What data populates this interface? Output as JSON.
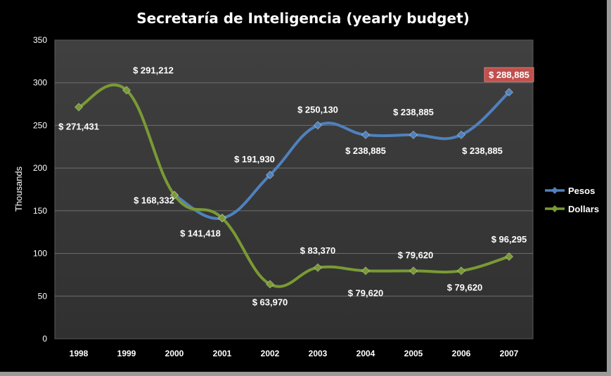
{
  "chart_data": {
    "type": "line",
    "title": "Secretaría de Inteligencia (yearly budget)",
    "xlabel": "",
    "ylabel": "Thousands",
    "ylim": [
      0,
      350
    ],
    "yticks": [
      "0",
      "50",
      "100",
      "150",
      "200",
      "250",
      "300",
      "350"
    ],
    "grid": true,
    "legend_position": "right",
    "categories": [
      "1998",
      "1999",
      "2000",
      "2001",
      "2002",
      "2003",
      "2004",
      "2005",
      "2006",
      "2007"
    ],
    "series": [
      {
        "name": "Pesos",
        "color": "#4f81bd",
        "values": [
          null,
          null,
          168.332,
          141.418,
          191.93,
          250.13,
          238.885,
          238.885,
          238.885,
          288.885
        ],
        "labels": [
          "",
          "",
          "",
          "",
          "$ 191,930",
          "$ 250,130",
          "$ 238,885",
          "$ 238,885",
          "$ 238,885",
          "$ 288,885"
        ]
      },
      {
        "name": "Dollars",
        "color": "#7a9a34",
        "values": [
          271.431,
          291.212,
          168.332,
          141.418,
          63.97,
          83.37,
          79.62,
          79.62,
          79.62,
          96.295
        ],
        "labels": [
          "$ 271,431",
          "$ 291,212",
          "$ 168,332",
          "$ 141,418",
          "$ 63,970",
          "$ 83,370",
          "$ 79,620",
          "$ 79,620",
          "$ 79,620",
          "$ 96,295"
        ]
      }
    ],
    "highlight_label_color": "#c0504d"
  }
}
